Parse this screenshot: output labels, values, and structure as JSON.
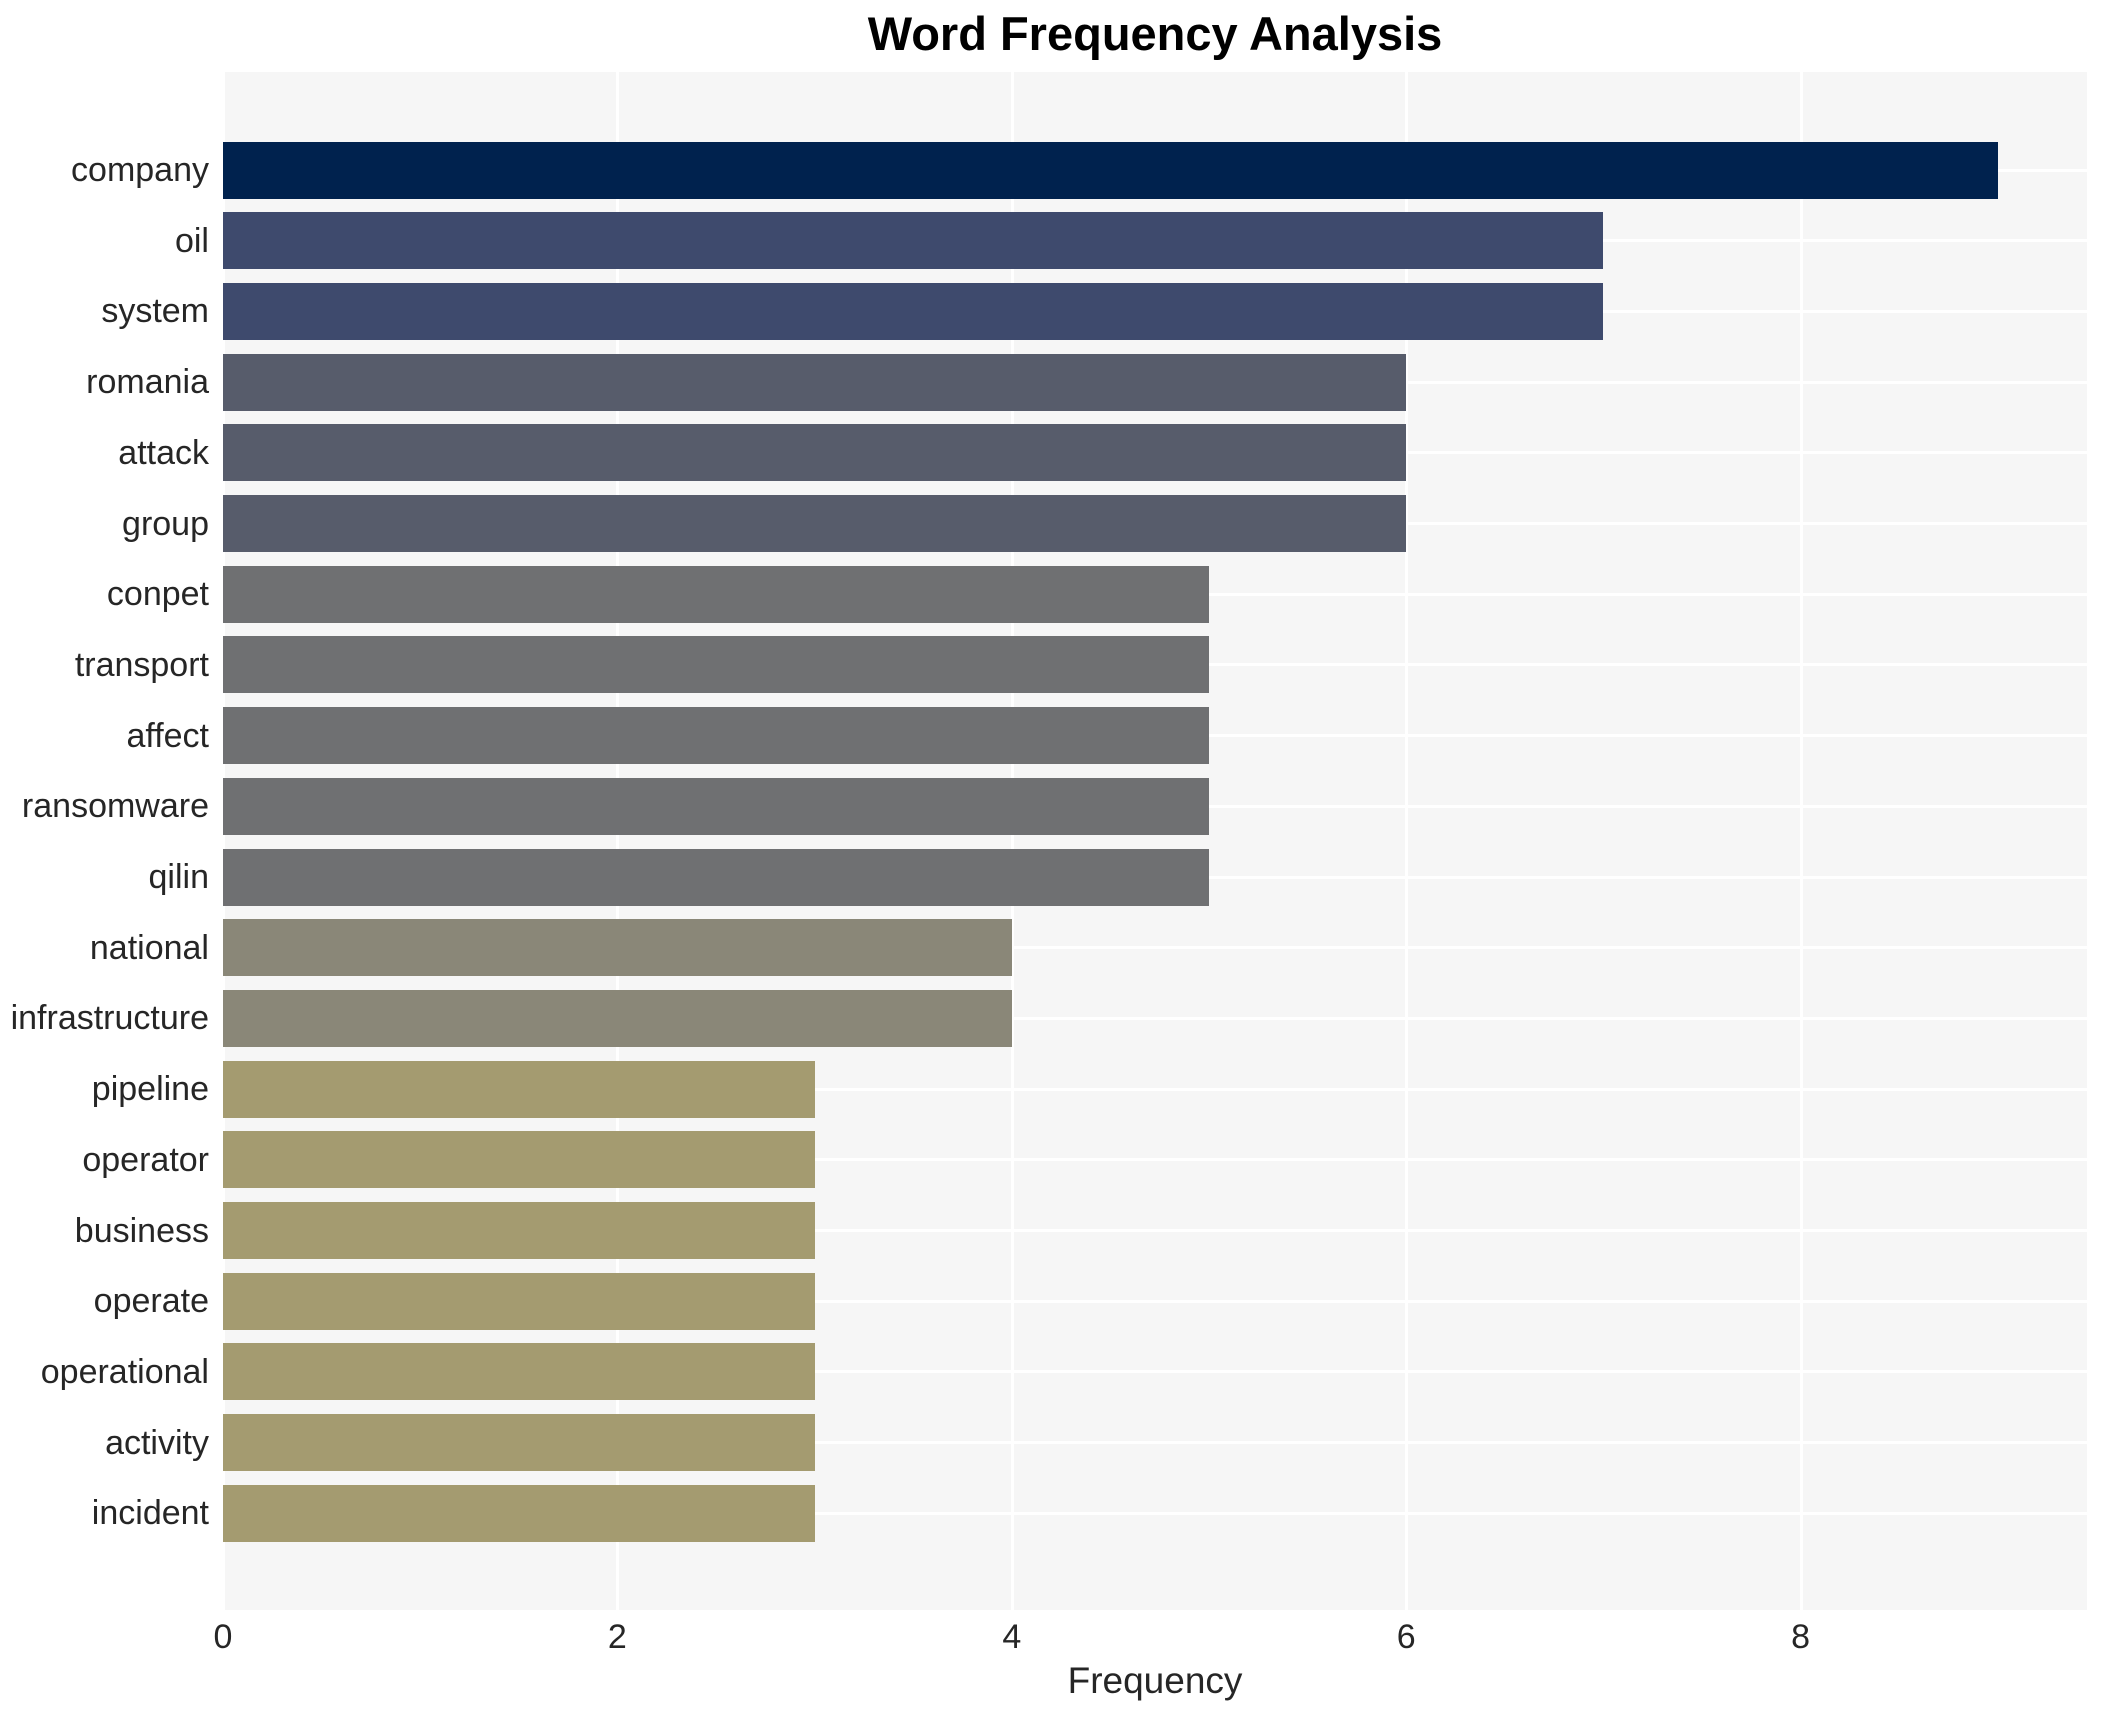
{
  "title": "Word Frequency Analysis",
  "xaxis": {
    "label": "Frequency",
    "ticks": [
      0,
      2,
      4,
      6,
      8
    ]
  },
  "chart_data": {
    "type": "bar",
    "orientation": "horizontal",
    "title": "Word Frequency Analysis",
    "xlabel": "Frequency",
    "ylabel": "",
    "xlim": [
      0,
      9.45
    ],
    "x_ticks": [
      0,
      2,
      4,
      6,
      8
    ],
    "grid": "white vertical gridlines at major x ticks, white horizontal gridlines at each category center, drawn under bars",
    "legend": "none",
    "categories": [
      "company",
      "oil",
      "system",
      "romania",
      "attack",
      "group",
      "conpet",
      "transport",
      "affect",
      "ransomware",
      "qilin",
      "national",
      "infrastructure",
      "pipeline",
      "operator",
      "business",
      "operate",
      "operational",
      "activity",
      "incident"
    ],
    "values": [
      9,
      7,
      7,
      6,
      6,
      6,
      5,
      5,
      5,
      5,
      5,
      4,
      4,
      3,
      3,
      3,
      3,
      3,
      3,
      3
    ],
    "bar_colors": [
      "#00224e",
      "#3e4a6d",
      "#3e4a6d",
      "#575c6b",
      "#575c6b",
      "#575c6b",
      "#6f7072",
      "#6f7072",
      "#6f7072",
      "#6f7072",
      "#6f7072",
      "#8a8778",
      "#8a8778",
      "#a49b70",
      "#a49b70",
      "#a49b70",
      "#a49b70",
      "#a49b70",
      "#a49b70",
      "#a49b70"
    ]
  },
  "colors": {
    "figure_background": "#ffffff",
    "panel_background": "#f6f6f6",
    "gridline": "#ffffff",
    "title_text": "#000000",
    "axis_text": "#262626"
  }
}
